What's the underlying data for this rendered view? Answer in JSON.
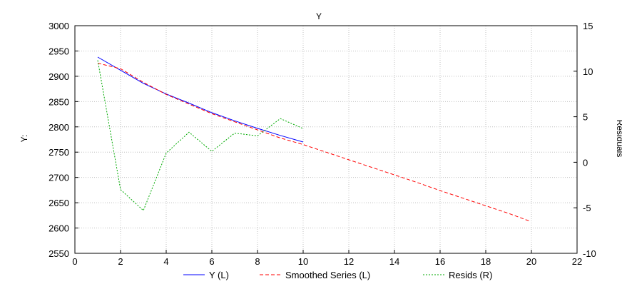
{
  "chart_data": {
    "type": "line",
    "title": "Y",
    "xlabel": "",
    "ylabel": "Y:",
    "y2label": "Residuals",
    "xlim": [
      0,
      22
    ],
    "ylim": [
      2550,
      3000
    ],
    "y2lim": [
      -10,
      15
    ],
    "xticks": [
      0,
      2,
      4,
      6,
      8,
      10,
      12,
      14,
      16,
      18,
      20,
      22
    ],
    "yticks": [
      2550,
      2600,
      2650,
      2700,
      2750,
      2800,
      2850,
      2900,
      2950,
      3000
    ],
    "y2ticks": [
      -10,
      -5,
      0,
      5,
      10,
      15
    ],
    "grid": true,
    "legend_position": "bottom-center",
    "series": [
      {
        "name": "Y (L)",
        "axis": "left",
        "color": "#0000ff",
        "style": "solid",
        "x": [
          1,
          2,
          3,
          4,
          5,
          6,
          7,
          8,
          9,
          10
        ],
        "y": [
          2938,
          2912,
          2886,
          2865,
          2847,
          2828,
          2812,
          2797,
          2783,
          2770
        ]
      },
      {
        "name": "Smoothed Series (L)",
        "axis": "left",
        "color": "#ff0000",
        "style": "dashed",
        "x": [
          1,
          2,
          3,
          4,
          5,
          6,
          7,
          8,
          9,
          10,
          11,
          12,
          13,
          14,
          15,
          16,
          17,
          18,
          19,
          19.9
        ],
        "y": [
          2926,
          2915,
          2888,
          2864,
          2845,
          2826,
          2810,
          2794,
          2778,
          2765,
          2750,
          2735,
          2720,
          2705,
          2690,
          2674,
          2659,
          2644,
          2629,
          2614
        ]
      },
      {
        "name": "Resids (R)",
        "axis": "right",
        "color": "#00aa00",
        "style": "dotted",
        "x": [
          1,
          2,
          3,
          4,
          5,
          6,
          7,
          8,
          9,
          10
        ],
        "y": [
          11.2,
          -3.0,
          -5.3,
          1.0,
          3.3,
          1.2,
          3.2,
          2.9,
          4.8,
          3.7
        ]
      }
    ]
  }
}
